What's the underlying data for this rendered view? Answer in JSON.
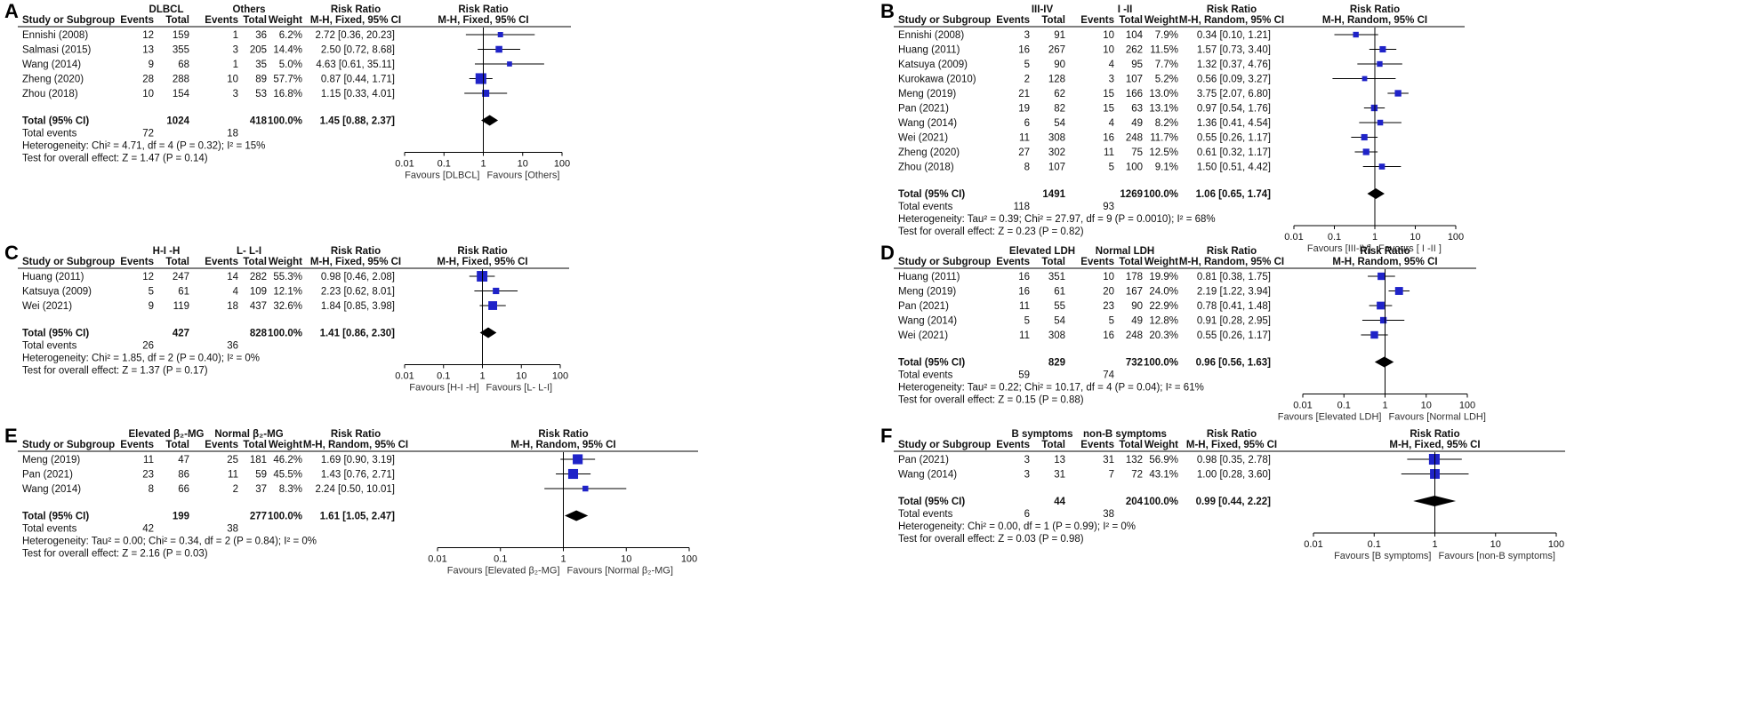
{
  "colors": {
    "square": "#1f23c8",
    "diamond": "#000000",
    "line": "#000000"
  },
  "axis_ticks": [
    "0.01",
    "0.1",
    "1",
    "10",
    "100"
  ],
  "chart_data": [
    {
      "type": "forest",
      "label": "A",
      "group1": "DLBCL",
      "group2": "Others",
      "sub_col": "Study or Subgroup",
      "events_col": "Events",
      "total_col": "Total",
      "weight_col": "Weight",
      "rr_col_top": "Risk Ratio",
      "rr_col_bottom": "M-H, Fixed, 95% CI",
      "plot_title_top": "Risk Ratio",
      "plot_title_bottom": "M-H, Fixed, 95% CI",
      "studies": [
        {
          "name": "Ennishi (2008)",
          "e1": "12",
          "t1": "159",
          "e2": "1",
          "t2": "36",
          "weight": "6.2%",
          "rr_text": "2.72 [0.36, 20.23]",
          "rr": 2.72,
          "lo": 0.36,
          "hi": 20.23,
          "w": 6.2
        },
        {
          "name": "Salmasi (2015)",
          "e1": "13",
          "t1": "355",
          "e2": "3",
          "t2": "205",
          "weight": "14.4%",
          "rr_text": "2.50 [0.72, 8.68]",
          "rr": 2.5,
          "lo": 0.72,
          "hi": 8.68,
          "w": 14.4
        },
        {
          "name": "Wang (2014)",
          "e1": "9",
          "t1": "68",
          "e2": "1",
          "t2": "35",
          "weight": "5.0%",
          "rr_text": "4.63 [0.61, 35.11]",
          "rr": 4.63,
          "lo": 0.61,
          "hi": 35.11,
          "w": 5.0
        },
        {
          "name": "Zheng (2020)",
          "e1": "28",
          "t1": "288",
          "e2": "10",
          "t2": "89",
          "weight": "57.7%",
          "rr_text": "0.87 [0.44, 1.71]",
          "rr": 0.87,
          "lo": 0.44,
          "hi": 1.71,
          "w": 57.7
        },
        {
          "name": "Zhou (2018)",
          "e1": "10",
          "t1": "154",
          "e2": "3",
          "t2": "53",
          "weight": "16.8%",
          "rr_text": "1.15 [0.33, 4.01]",
          "rr": 1.15,
          "lo": 0.33,
          "hi": 4.01,
          "w": 16.8
        }
      ],
      "total_label": "Total (95% CI)",
      "total_t1": "1024",
      "total_t2": "418",
      "total_weight": "100.0%",
      "total_rr_text": "1.45 [0.88, 2.37]",
      "total_rr": 1.45,
      "total_lo": 0.88,
      "total_hi": 2.37,
      "events_label": "Total events",
      "events1": "72",
      "events2": "18",
      "heterogeneity": "Heterogeneity: Chi² = 4.71, df = 4 (P = 0.32); I² = 15%",
      "overall": "Test for overall effect: Z = 1.47 (P = 0.14)",
      "favours_left": "Favours [DLBCL]",
      "favours_right": "Favours [Others]"
    },
    {
      "type": "forest",
      "label": "B",
      "group1": "III-IV",
      "group2": "I -II",
      "sub_col": "Study or Subgroup",
      "events_col": "Events",
      "total_col": "Total",
      "weight_col": "Weight",
      "rr_col_top": "Risk Ratio",
      "rr_col_bottom": "M-H, Random, 95% CI",
      "plot_title_top": "Risk Ratio",
      "plot_title_bottom": "M-H, Random, 95% CI",
      "studies": [
        {
          "name": "Ennishi (2008)",
          "e1": "3",
          "t1": "91",
          "e2": "10",
          "t2": "104",
          "weight": "7.9%",
          "rr_text": "0.34 [0.10, 1.21]",
          "rr": 0.34,
          "lo": 0.1,
          "hi": 1.21,
          "w": 7.9
        },
        {
          "name": "Huang (2011)",
          "e1": "16",
          "t1": "267",
          "e2": "10",
          "t2": "262",
          "weight": "11.5%",
          "rr_text": "1.57 [0.73, 3.40]",
          "rr": 1.57,
          "lo": 0.73,
          "hi": 3.4,
          "w": 11.5
        },
        {
          "name": "Katsuya (2009)",
          "e1": "5",
          "t1": "90",
          "e2": "4",
          "t2": "95",
          "weight": "7.7%",
          "rr_text": "1.32 [0.37, 4.76]",
          "rr": 1.32,
          "lo": 0.37,
          "hi": 4.76,
          "w": 7.7
        },
        {
          "name": "Kurokawa (2010)",
          "e1": "2",
          "t1": "128",
          "e2": "3",
          "t2": "107",
          "weight": "5.2%",
          "rr_text": "0.56 [0.09, 3.27]",
          "rr": 0.56,
          "lo": 0.09,
          "hi": 3.27,
          "w": 5.2
        },
        {
          "name": "Meng (2019)",
          "e1": "21",
          "t1": "62",
          "e2": "15",
          "t2": "166",
          "weight": "13.0%",
          "rr_text": "3.75 [2.07, 6.80]",
          "rr": 3.75,
          "lo": 2.07,
          "hi": 6.8,
          "w": 13.0
        },
        {
          "name": "Pan (2021)",
          "e1": "19",
          "t1": "82",
          "e2": "15",
          "t2": "63",
          "weight": "13.1%",
          "rr_text": "0.97 [0.54, 1.76]",
          "rr": 0.97,
          "lo": 0.54,
          "hi": 1.76,
          "w": 13.1
        },
        {
          "name": "Wang (2014)",
          "e1": "6",
          "t1": "54",
          "e2": "4",
          "t2": "49",
          "weight": "8.2%",
          "rr_text": "1.36 [0.41, 4.54]",
          "rr": 1.36,
          "lo": 0.41,
          "hi": 4.54,
          "w": 8.2
        },
        {
          "name": "Wei (2021)",
          "e1": "11",
          "t1": "308",
          "e2": "16",
          "t2": "248",
          "weight": "11.7%",
          "rr_text": "0.55 [0.26, 1.17]",
          "rr": 0.55,
          "lo": 0.26,
          "hi": 1.17,
          "w": 11.7
        },
        {
          "name": "Zheng (2020)",
          "e1": "27",
          "t1": "302",
          "e2": "11",
          "t2": "75",
          "weight": "12.5%",
          "rr_text": "0.61 [0.32, 1.17]",
          "rr": 0.61,
          "lo": 0.32,
          "hi": 1.17,
          "w": 12.5
        },
        {
          "name": "Zhou (2018)",
          "e1": "8",
          "t1": "107",
          "e2": "5",
          "t2": "100",
          "weight": "9.1%",
          "rr_text": "1.50 [0.51, 4.42]",
          "rr": 1.5,
          "lo": 0.51,
          "hi": 4.42,
          "w": 9.1
        }
      ],
      "total_label": "Total (95% CI)",
      "total_t1": "1491",
      "total_t2": "1269",
      "total_weight": "100.0%",
      "total_rr_text": "1.06 [0.65, 1.74]",
      "total_rr": 1.06,
      "total_lo": 0.65,
      "total_hi": 1.74,
      "events_label": "Total events",
      "events1": "118",
      "events2": "93",
      "heterogeneity": "Heterogeneity: Tau² = 0.39; Chi² = 27.97, df = 9 (P = 0.0010); I² = 68%",
      "overall": "Test for overall effect: Z = 0.23 (P = 0.82)",
      "favours_left": "Favours [III-IV]",
      "favours_right": "Favours [ I -II ]"
    },
    {
      "type": "forest",
      "label": "C",
      "group1": "H-I -H",
      "group2": "L- L-I",
      "sub_col": "Study or Subgroup",
      "events_col": "Events",
      "total_col": "Total",
      "weight_col": "Weight",
      "rr_col_top": "Risk Ratio",
      "rr_col_bottom": "M-H, Fixed, 95% CI",
      "plot_title_top": "Risk Ratio",
      "plot_title_bottom": "M-H, Fixed, 95% CI",
      "studies": [
        {
          "name": "Huang (2011)",
          "e1": "12",
          "t1": "247",
          "e2": "14",
          "t2": "282",
          "weight": "55.3%",
          "rr_text": "0.98 [0.46, 2.08]",
          "rr": 0.98,
          "lo": 0.46,
          "hi": 2.08,
          "w": 55.3
        },
        {
          "name": "Katsuya (2009)",
          "e1": "5",
          "t1": "61",
          "e2": "4",
          "t2": "109",
          "weight": "12.1%",
          "rr_text": "2.23 [0.62, 8.01]",
          "rr": 2.23,
          "lo": 0.62,
          "hi": 8.01,
          "w": 12.1
        },
        {
          "name": "Wei (2021)",
          "e1": "9",
          "t1": "119",
          "e2": "18",
          "t2": "437",
          "weight": "32.6%",
          "rr_text": "1.84 [0.85, 3.98]",
          "rr": 1.84,
          "lo": 0.85,
          "hi": 3.98,
          "w": 32.6
        }
      ],
      "total_label": "Total (95% CI)",
      "total_t1": "427",
      "total_t2": "828",
      "total_weight": "100.0%",
      "total_rr_text": "1.41 [0.86, 2.30]",
      "total_rr": 1.41,
      "total_lo": 0.86,
      "total_hi": 2.3,
      "events_label": "Total events",
      "events1": "26",
      "events2": "36",
      "heterogeneity": "Heterogeneity: Chi² = 1.85, df = 2 (P = 0.40); I² = 0%",
      "overall": "Test for overall effect: Z = 1.37 (P = 0.17)",
      "favours_left": "Favours [H-I -H]",
      "favours_right": "Favours [L- L-I]"
    },
    {
      "type": "forest",
      "label": "D",
      "group1": "Elevated LDH",
      "group2": "Normal LDH",
      "sub_col": "Study or Subgroup",
      "events_col": "Events",
      "total_col": "Total",
      "weight_col": "Weight",
      "rr_col_top": "Risk Ratio",
      "rr_col_bottom": "M-H, Random, 95% CI",
      "plot_title_top": "Risk Ratio",
      "plot_title_bottom": "M-H, Random, 95% CI",
      "studies": [
        {
          "name": "Huang (2011)",
          "e1": "16",
          "t1": "351",
          "e2": "10",
          "t2": "178",
          "weight": "19.9%",
          "rr_text": "0.81 [0.38, 1.75]",
          "rr": 0.81,
          "lo": 0.38,
          "hi": 1.75,
          "w": 19.9
        },
        {
          "name": "Meng (2019)",
          "e1": "16",
          "t1": "61",
          "e2": "20",
          "t2": "167",
          "weight": "24.0%",
          "rr_text": "2.19 [1.22, 3.94]",
          "rr": 2.19,
          "lo": 1.22,
          "hi": 3.94,
          "w": 24.0
        },
        {
          "name": "Pan (2021)",
          "e1": "11",
          "t1": "55",
          "e2": "23",
          "t2": "90",
          "weight": "22.9%",
          "rr_text": "0.78 [0.41, 1.48]",
          "rr": 0.78,
          "lo": 0.41,
          "hi": 1.48,
          "w": 22.9
        },
        {
          "name": "Wang (2014)",
          "e1": "5",
          "t1": "54",
          "e2": "5",
          "t2": "49",
          "weight": "12.8%",
          "rr_text": "0.91 [0.28, 2.95]",
          "rr": 0.91,
          "lo": 0.28,
          "hi": 2.95,
          "w": 12.8
        },
        {
          "name": "Wei (2021)",
          "e1": "11",
          "t1": "308",
          "e2": "16",
          "t2": "248",
          "weight": "20.3%",
          "rr_text": "0.55 [0.26, 1.17]",
          "rr": 0.55,
          "lo": 0.26,
          "hi": 1.17,
          "w": 20.3
        }
      ],
      "total_label": "Total (95% CI)",
      "total_t1": "829",
      "total_t2": "732",
      "total_weight": "100.0%",
      "total_rr_text": "0.96 [0.56, 1.63]",
      "total_rr": 0.96,
      "total_lo": 0.56,
      "total_hi": 1.63,
      "events_label": "Total events",
      "events1": "59",
      "events2": "74",
      "heterogeneity": "Heterogeneity: Tau² = 0.22; Chi² = 10.17, df = 4 (P = 0.04); I² = 61%",
      "overall": "Test for overall effect: Z = 0.15 (P = 0.88)",
      "favours_left": "Favours [Elevated LDH]",
      "favours_right": "Favours [Normal LDH]"
    },
    {
      "type": "forest",
      "label": "E",
      "group1": "Elevated β₂-MG",
      "group2": "Normal β₂-MG",
      "sub_col": "Study or Subgroup",
      "events_col": "Events",
      "total_col": "Total",
      "weight_col": "Weight",
      "rr_col_top": "Risk Ratio",
      "rr_col_bottom": "M-H, Random, 95% CI",
      "plot_title_top": "Risk Ratio",
      "plot_title_bottom": "M-H, Random, 95% CI",
      "studies": [
        {
          "name": "Meng (2019)",
          "e1": "11",
          "t1": "47",
          "e2": "25",
          "t2": "181",
          "weight": "46.2%",
          "rr_text": "1.69 [0.90, 3.19]",
          "rr": 1.69,
          "lo": 0.9,
          "hi": 3.19,
          "w": 46.2
        },
        {
          "name": "Pan (2021)",
          "e1": "23",
          "t1": "86",
          "e2": "11",
          "t2": "59",
          "weight": "45.5%",
          "rr_text": "1.43 [0.76, 2.71]",
          "rr": 1.43,
          "lo": 0.76,
          "hi": 2.71,
          "w": 45.5
        },
        {
          "name": "Wang (2014)",
          "e1": "8",
          "t1": "66",
          "e2": "2",
          "t2": "37",
          "weight": "8.3%",
          "rr_text": "2.24 [0.50, 10.01]",
          "rr": 2.24,
          "lo": 0.5,
          "hi": 10.01,
          "w": 8.3
        }
      ],
      "total_label": "Total (95% CI)",
      "total_t1": "199",
      "total_t2": "277",
      "total_weight": "100.0%",
      "total_rr_text": "1.61 [1.05, 2.47]",
      "total_rr": 1.61,
      "total_lo": 1.05,
      "total_hi": 2.47,
      "events_label": "Total events",
      "events1": "42",
      "events2": "38",
      "heterogeneity": "Heterogeneity: Tau² = 0.00; Chi² = 0.34, df = 2 (P = 0.84); I² = 0%",
      "overall": "Test for overall effect: Z = 2.16 (P = 0.03)",
      "favours_left": "Favours [Elevated β₂-MG]",
      "favours_right": "Favours [Normal β₂-MG]"
    },
    {
      "type": "forest",
      "label": "F",
      "group1": "B symptoms",
      "group2": "non-B symptoms",
      "sub_col": "Study or Subgroup",
      "events_col": "Events",
      "total_col": "Total",
      "weight_col": "Weight",
      "rr_col_top": "Risk Ratio",
      "rr_col_bottom": "M-H, Fixed, 95% CI",
      "plot_title_top": "Risk Ratio",
      "plot_title_bottom": "M-H, Fixed, 95% CI",
      "studies": [
        {
          "name": "Pan (2021)",
          "e1": "3",
          "t1": "13",
          "e2": "31",
          "t2": "132",
          "weight": "56.9%",
          "rr_text": "0.98 [0.35, 2.78]",
          "rr": 0.98,
          "lo": 0.35,
          "hi": 2.78,
          "w": 56.9
        },
        {
          "name": "Wang (2014)",
          "e1": "3",
          "t1": "31",
          "e2": "7",
          "t2": "72",
          "weight": "43.1%",
          "rr_text": "1.00 [0.28, 3.60]",
          "rr": 1.0,
          "lo": 0.28,
          "hi": 3.6,
          "w": 43.1
        }
      ],
      "total_label": "Total (95% CI)",
      "total_t1": "44",
      "total_t2": "204",
      "total_weight": "100.0%",
      "total_rr_text": "0.99 [0.44, 2.22]",
      "total_rr": 0.99,
      "total_lo": 0.44,
      "total_hi": 2.22,
      "events_label": "Total events",
      "events1": "6",
      "events2": "38",
      "heterogeneity": "Heterogeneity: Chi² = 0.00, df = 1 (P = 0.99); I² = 0%",
      "overall": "Test for overall effect: Z = 0.03 (P = 0.98)",
      "favours_left": "Favours [B symptoms]",
      "favours_right": "Favours [non-B symptoms]"
    }
  ]
}
